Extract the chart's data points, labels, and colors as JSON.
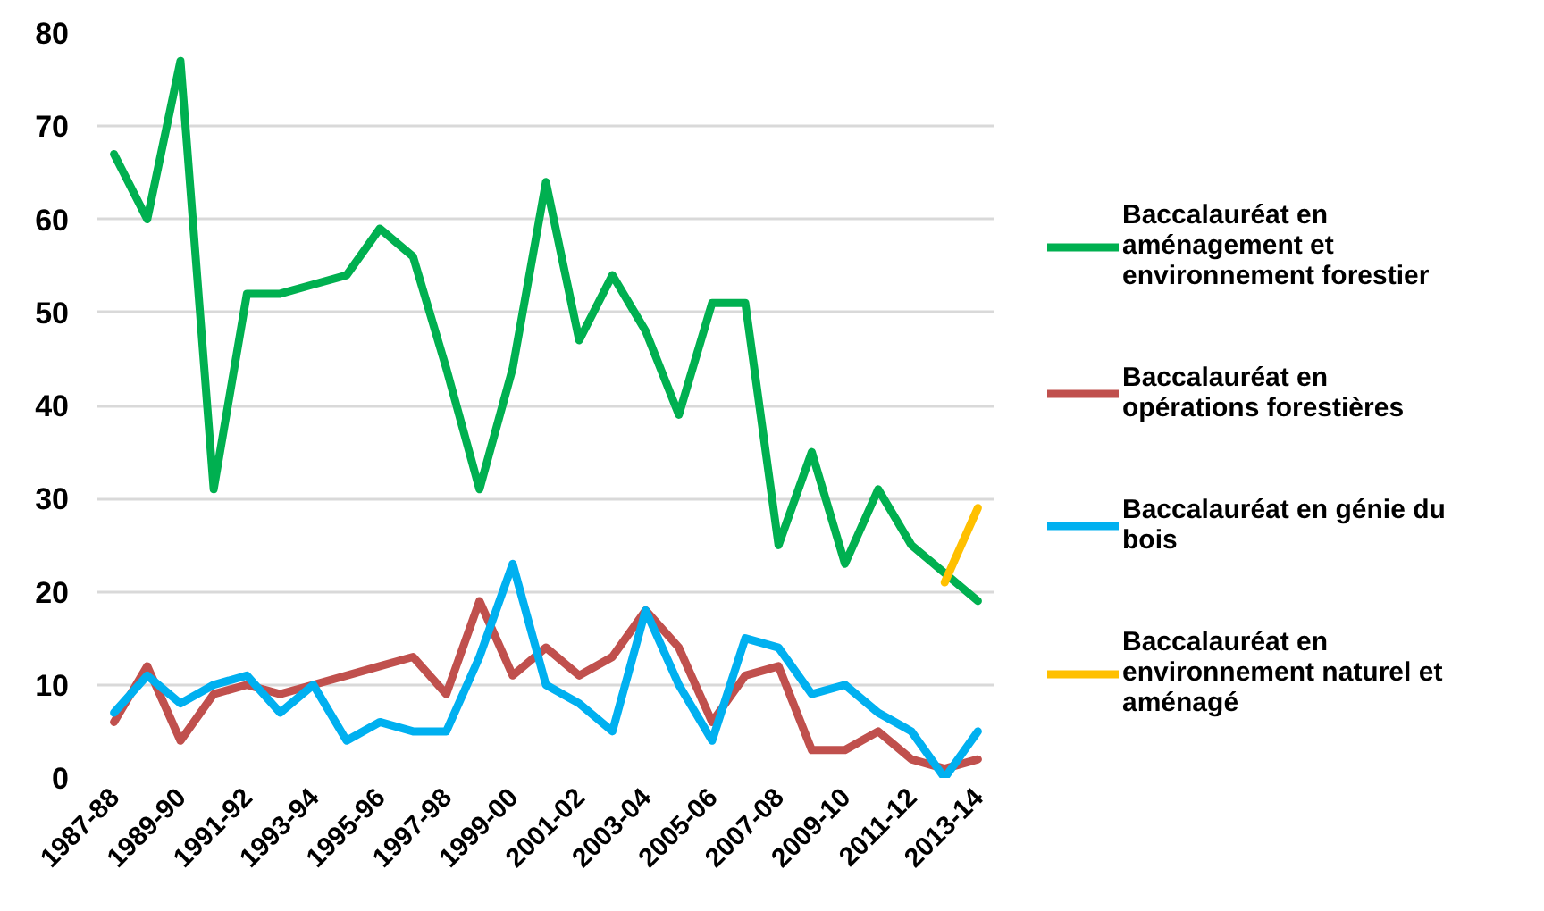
{
  "chart_data": {
    "type": "line",
    "categories": [
      "1987-88",
      null,
      "1989-90",
      null,
      "1991-92",
      null,
      "1993-94",
      null,
      "1995-96",
      null,
      "1997-98",
      null,
      "1999-00",
      null,
      "2001-02",
      null,
      "2003-04",
      null,
      "2005-06",
      null,
      "2007-08",
      null,
      "2009-10",
      null,
      "2011-12",
      null,
      "2013-14"
    ],
    "series": [
      {
        "name": "Baccalauréat en aménagement et environnement forestier",
        "color": "#00b050",
        "values": [
          67,
          60,
          77,
          31,
          52,
          52,
          53,
          54,
          59,
          56,
          44,
          31,
          44,
          64,
          47,
          54,
          48,
          39,
          51,
          51,
          25,
          35,
          23,
          31,
          25,
          22,
          19
        ]
      },
      {
        "name": "Baccalauréat en opérations forestières",
        "color": "#c0504d",
        "values": [
          6,
          12,
          4,
          9,
          10,
          9,
          10,
          11,
          12,
          13,
          9,
          19,
          11,
          14,
          11,
          13,
          18,
          14,
          6,
          11,
          12,
          3,
          3,
          5,
          2,
          1,
          2
        ]
      },
      {
        "name": "Baccalauréat en génie du bois",
        "color": "#00b0f0",
        "values": [
          7,
          11,
          8,
          10,
          11,
          7,
          10,
          4,
          6,
          5,
          5,
          13,
          23,
          10,
          8,
          5,
          18,
          10,
          4,
          15,
          14,
          9,
          10,
          7,
          5,
          0,
          5
        ]
      },
      {
        "name": "Baccalauréat en environnement naturel et aménagé",
        "color": "#ffc000",
        "values": [
          null,
          null,
          null,
          null,
          null,
          null,
          null,
          null,
          null,
          null,
          null,
          null,
          null,
          null,
          null,
          null,
          null,
          null,
          null,
          null,
          null,
          null,
          null,
          null,
          null,
          21,
          29
        ]
      }
    ],
    "ylim": [
      0,
      80
    ],
    "yticks": [
      0,
      10,
      20,
      30,
      40,
      50,
      60,
      70,
      80
    ],
    "grid": "y",
    "legend": "right"
  }
}
